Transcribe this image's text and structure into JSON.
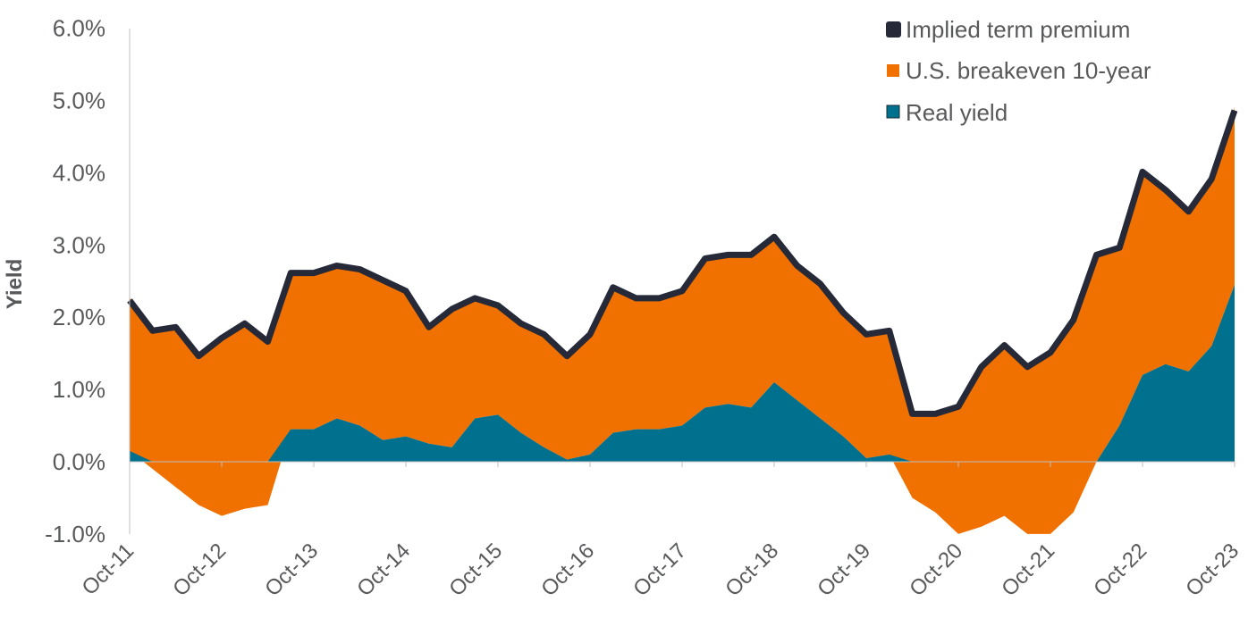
{
  "chart_data": {
    "type": "area",
    "stacked": true,
    "title": "",
    "xlabel": "",
    "ylabel": "Yield",
    "ylim": [
      -1.0,
      6.0
    ],
    "yticks": [
      "-1.0%",
      "0.0%",
      "1.0%",
      "2.0%",
      "3.0%",
      "4.0%",
      "5.0%",
      "6.0%"
    ],
    "ytick_values": [
      -1,
      0,
      1,
      2,
      3,
      4,
      5,
      6
    ],
    "xtick_labels": [
      "Oct-11",
      "Oct-12",
      "Oct-13",
      "Oct-14",
      "Oct-15",
      "Oct-16",
      "Oct-17",
      "Oct-18",
      "Oct-19",
      "Oct-20",
      "Oct-21",
      "Oct-22",
      "Oct-23"
    ],
    "x_note": "quarterly points from Oct-11 (index 0) to Oct-23 (index 48)",
    "legend_position": "top-right",
    "series": [
      {
        "name": "Implied term premium",
        "color": "#262a38",
        "values": [
          0.1,
          0.1,
          0.1,
          0.1,
          0.1,
          0.1,
          0.1,
          0.1,
          0.1,
          0.1,
          0.1,
          0.1,
          0.1,
          0.1,
          0.1,
          0.1,
          0.1,
          0.1,
          0.1,
          0.1,
          0.1,
          0.1,
          0.1,
          0.1,
          0.1,
          0.1,
          0.1,
          0.1,
          0.1,
          0.1,
          0.1,
          0.1,
          0.1,
          0.1,
          0.1,
          0.1,
          0.1,
          0.1,
          0.1,
          0.1,
          0.1,
          0.1,
          0.1,
          0.1,
          0.1,
          0.1,
          0.1,
          0.1,
          0.1
        ]
      },
      {
        "name": "U.S. breakeven 10-year",
        "color": "#f07000",
        "values": [
          2.02,
          1.85,
          2.15,
          2.0,
          2.4,
          2.5,
          2.2,
          2.1,
          2.1,
          2.05,
          2.1,
          2.15,
          1.95,
          1.55,
          1.85,
          1.6,
          1.45,
          1.45,
          1.5,
          1.37,
          1.6,
          1.95,
          1.75,
          1.75,
          1.8,
          2.0,
          2.0,
          2.05,
          1.95,
          1.8,
          1.8,
          1.65,
          1.65,
          1.65,
          1.1,
          1.3,
          1.7,
          2.15,
          2.3,
          2.25,
          2.45,
          2.6,
          2.8,
          2.4,
          2.75,
          2.35,
          2.15,
          2.25,
          2.35
        ]
      },
      {
        "name": "Real yield",
        "color": "#00708f",
        "values": [
          0.15,
          -0.1,
          -0.35,
          -0.6,
          -0.75,
          -0.65,
          -0.6,
          0.45,
          0.45,
          0.6,
          0.5,
          0.3,
          0.35,
          0.25,
          0.2,
          0.6,
          0.65,
          0.4,
          0.2,
          0.03,
          0.1,
          0.4,
          0.45,
          0.45,
          0.5,
          0.75,
          0.8,
          0.75,
          1.1,
          0.85,
          0.6,
          0.35,
          0.05,
          0.1,
          -0.5,
          -0.7,
          -1.0,
          -0.9,
          -0.75,
          -1.0,
          -1.0,
          -0.7,
          0.0,
          0.5,
          1.2,
          1.35,
          1.25,
          1.6,
          2.45
        ]
      }
    ]
  }
}
